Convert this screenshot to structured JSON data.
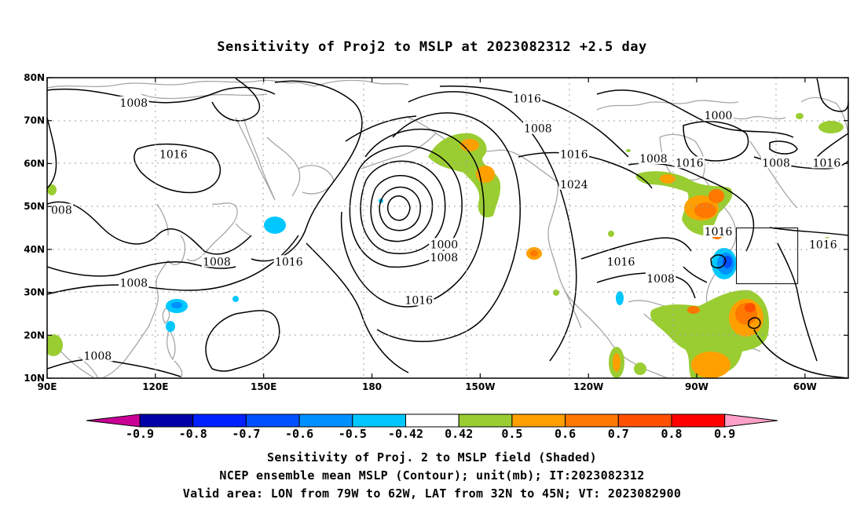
{
  "title": "Sensitivity of Proj2 to MSLP at 2023082312 +2.5 day",
  "captions": {
    "line1": "Sensitivity of Proj. 2 to MSLP field (Shaded)",
    "line2": "NCEP ensemble mean MSLP (Contour); unit(mb); IT:2023082312",
    "line3": "Valid area: LON from 79W to 62W, LAT from 32N to 45N; VT: 2023082900"
  },
  "map": {
    "lat_labels": [
      "80N",
      "70N",
      "60N",
      "50N",
      "40N",
      "30N",
      "20N",
      "10N"
    ],
    "lon_labels": [
      "90E",
      "120E",
      "150E",
      "180",
      "150W",
      "120W",
      "90W",
      "60W"
    ],
    "lat_range": [
      10,
      80
    ],
    "lon_range": [
      90,
      312
    ],
    "contour_labels": [
      {
        "text": "1008",
        "lon": 114,
        "lat": 74
      },
      {
        "text": "1016",
        "lon": 125,
        "lat": 62
      },
      {
        "text": "1016",
        "lon": 223,
        "lat": 75
      },
      {
        "text": "1008",
        "lon": 226,
        "lat": 68
      },
      {
        "text": "1000",
        "lon": 276,
        "lat": 71
      },
      {
        "text": "1016",
        "lon": 236,
        "lat": 62
      },
      {
        "text": "1024",
        "lon": 236,
        "lat": 55
      },
      {
        "text": "1008",
        "lon": 258,
        "lat": 61
      },
      {
        "text": "1016",
        "lon": 268,
        "lat": 60
      },
      {
        "text": "1008",
        "lon": 292,
        "lat": 60
      },
      {
        "text": "1016",
        "lon": 306,
        "lat": 60
      },
      {
        "text": "1016",
        "lon": 276,
        "lat": 44
      },
      {
        "text": "1016",
        "lon": 305,
        "lat": 41
      },
      {
        "text": "008",
        "lon": 94,
        "lat": 49
      },
      {
        "text": "1008",
        "lon": 137,
        "lat": 37
      },
      {
        "text": "1016",
        "lon": 157,
        "lat": 37
      },
      {
        "text": "1008",
        "lon": 114,
        "lat": 32
      },
      {
        "text": "1000",
        "lon": 200,
        "lat": 41
      },
      {
        "text": "1008",
        "lon": 200,
        "lat": 38
      },
      {
        "text": "1016",
        "lon": 193,
        "lat": 28
      },
      {
        "text": "1016",
        "lon": 249,
        "lat": 37
      },
      {
        "text": "1008",
        "lon": 260,
        "lat": 33
      },
      {
        "text": "1008",
        "lon": 104,
        "lat": 15
      }
    ],
    "valid_box": {
      "lon_min": 281,
      "lon_max": 298,
      "lat_min": 32,
      "lat_max": 45
    }
  },
  "colorbar": {
    "labels": [
      "-0.9",
      "-0.8",
      "-0.7",
      "-0.6",
      "-0.5",
      "-0.42",
      "0.42",
      "0.5",
      "0.6",
      "0.7",
      "0.8",
      "0.9"
    ],
    "colors": [
      "#0000a8",
      "#0020ff",
      "#0050ff",
      "#0090ff",
      "#00c8ff",
      "#ffffff",
      "#9acd32",
      "#ffa000",
      "#ff7800",
      "#ff5000",
      "#ff0000"
    ],
    "low_end_color": "#c80096",
    "high_end_color": "#ffa0c8"
  },
  "colors": {
    "contour": "#000000",
    "coast": "#a6a6a6",
    "grid": "#a0a0a0"
  }
}
